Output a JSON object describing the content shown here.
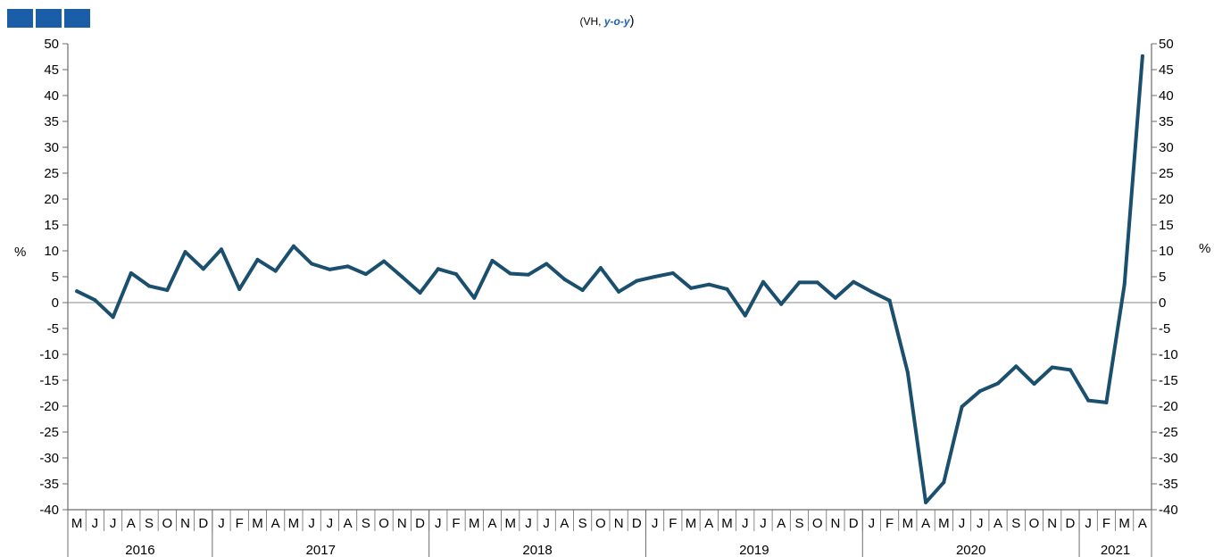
{
  "colors": {
    "line": "#1b4f6e",
    "logo": "#1b5da6",
    "axis": "#6b6b6b",
    "zero": "#8a8a8a"
  },
  "logo_icon": "brand-blocks-icon",
  "subtitle": {
    "prefix": "(VH, ",
    "emphasis": "y-o-y",
    "suffix": ")"
  },
  "chart_data": {
    "type": "line",
    "ylabel": "%",
    "ylabel_right": "%",
    "ylim": [
      -40,
      50
    ],
    "yticks": [
      50,
      45,
      40,
      35,
      30,
      25,
      20,
      15,
      10,
      5,
      0,
      -5,
      -10,
      -15,
      -20,
      -25,
      -30,
      -35,
      -40
    ],
    "grid": false,
    "months": [
      "M",
      "J",
      "J",
      "A",
      "S",
      "O",
      "N",
      "D",
      "J",
      "F",
      "M",
      "A",
      "M",
      "J",
      "J",
      "A",
      "S",
      "O",
      "N",
      "D",
      "J",
      "F",
      "M",
      "A",
      "M",
      "J",
      "J",
      "A",
      "S",
      "O",
      "N",
      "D",
      "J",
      "F",
      "M",
      "A",
      "M",
      "J",
      "J",
      "A",
      "S",
      "O",
      "N",
      "D",
      "J",
      "F",
      "M",
      "A",
      "M",
      "J",
      "J",
      "A",
      "S",
      "O",
      "N",
      "D",
      "J",
      "F",
      "M",
      "A"
    ],
    "years": [
      {
        "label": "2016",
        "start": 0,
        "count": 8
      },
      {
        "label": "2017",
        "start": 8,
        "count": 12
      },
      {
        "label": "2018",
        "start": 20,
        "count": 12
      },
      {
        "label": "2019",
        "start": 32,
        "count": 12
      },
      {
        "label": "2020",
        "start": 44,
        "count": 12
      },
      {
        "label": "2021",
        "start": 56,
        "count": 4
      }
    ],
    "series": [
      {
        "values": [
          2.2,
          0.5,
          -2.8,
          5.7,
          3.2,
          2.4,
          9.8,
          6.5,
          10.3,
          2.6,
          8.3,
          6.1,
          10.9,
          7.5,
          6.4,
          7.0,
          5.5,
          8.0,
          5.0,
          1.9,
          6.5,
          5.5,
          0.9,
          8.1,
          5.6,
          5.4,
          7.5,
          4.5,
          2.4,
          6.7,
          2.1,
          4.2,
          5.0,
          5.7,
          2.8,
          3.5,
          2.6,
          -2.5,
          4.0,
          -0.3,
          3.9,
          3.9,
          0.9,
          4.0,
          2.1,
          0.4,
          -13.5,
          -38.6,
          -34.7,
          -20.1,
          -17.1,
          -15.6,
          -12.3,
          -15.7,
          -12.5,
          -13.0,
          -18.9,
          -19.3,
          3.5,
          47.6
        ]
      }
    ]
  }
}
